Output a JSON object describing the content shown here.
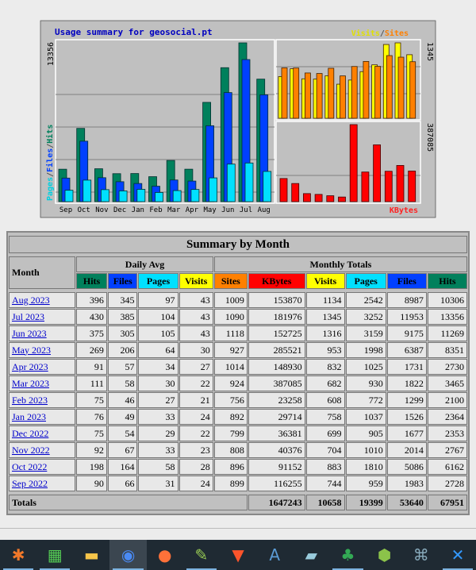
{
  "chart": {
    "title": "Usage summary for geosocial.pt",
    "legend_left": [
      "Pages",
      "/",
      "Files",
      "/",
      "Hits"
    ],
    "legend_visits": "Visits",
    "legend_sep": "/",
    "legend_sites": "Sites",
    "legend_kbytes": "KBytes",
    "max_hits": "13356",
    "max_visits": "1345",
    "max_kbytes": "387085",
    "colors": {
      "hits": "#00805c",
      "files": "#0040ff",
      "pages": "#00e0ff",
      "visits": "#ffff00",
      "sites": "#ff8000",
      "kbytes": "#ff0000"
    }
  },
  "chart_data": {
    "type": "bar",
    "title": "Usage summary for geosocial.pt",
    "categories": [
      "Sep",
      "Oct",
      "Nov",
      "Dec",
      "Jan",
      "Feb",
      "Mar",
      "Apr",
      "May",
      "Jun",
      "Jul",
      "Aug"
    ],
    "series": [
      {
        "name": "Hits",
        "values": [
          2728,
          6162,
          2767,
          2353,
          2364,
          2100,
          3465,
          2730,
          8351,
          11269,
          13356,
          10306
        ]
      },
      {
        "name": "Files",
        "values": [
          1983,
          5086,
          2014,
          1677,
          1526,
          1299,
          1822,
          1731,
          6387,
          9175,
          11953,
          8987
        ]
      },
      {
        "name": "Pages",
        "values": [
          959,
          1810,
          1010,
          905,
          1037,
          772,
          930,
          1025,
          1998,
          3159,
          3252,
          2542
        ]
      },
      {
        "name": "Visits",
        "values": [
          744,
          883,
          704,
          699,
          758,
          608,
          682,
          832,
          953,
          1316,
          1345,
          1134
        ]
      },
      {
        "name": "Sites",
        "values": [
          899,
          896,
          808,
          799,
          892,
          756,
          924,
          1014,
          927,
          1118,
          1090,
          1009
        ]
      },
      {
        "name": "KBytes",
        "values": [
          116255,
          91152,
          40376,
          36381,
          29714,
          23258,
          387085,
          148930,
          285521,
          152725,
          181976,
          153870
        ]
      }
    ],
    "ylim_hits": [
      0,
      13356
    ],
    "ylim_visits": [
      0,
      1345
    ],
    "ylim_kbytes": [
      0,
      387085
    ]
  },
  "table": {
    "title": "Summary by Month",
    "month_header": "Month",
    "daily_avg": "Daily Avg",
    "monthly_totals": "Monthly Totals",
    "columns": [
      "Hits",
      "Files",
      "Pages",
      "Visits",
      "Sites",
      "KBytes",
      "Visits",
      "Pages",
      "Files",
      "Hits"
    ],
    "rows": [
      [
        "Aug 2023",
        "396",
        "345",
        "97",
        "43",
        "1009",
        "153870",
        "1134",
        "2542",
        "8987",
        "10306"
      ],
      [
        "Jul 2023",
        "430",
        "385",
        "104",
        "43",
        "1090",
        "181976",
        "1345",
        "3252",
        "11953",
        "13356"
      ],
      [
        "Jun 2023",
        "375",
        "305",
        "105",
        "43",
        "1118",
        "152725",
        "1316",
        "3159",
        "9175",
        "11269"
      ],
      [
        "May 2023",
        "269",
        "206",
        "64",
        "30",
        "927",
        "285521",
        "953",
        "1998",
        "6387",
        "8351"
      ],
      [
        "Apr 2023",
        "91",
        "57",
        "34",
        "27",
        "1014",
        "148930",
        "832",
        "1025",
        "1731",
        "2730"
      ],
      [
        "Mar 2023",
        "111",
        "58",
        "30",
        "22",
        "924",
        "387085",
        "682",
        "930",
        "1822",
        "3465"
      ],
      [
        "Feb 2023",
        "75",
        "46",
        "27",
        "21",
        "756",
        "23258",
        "608",
        "772",
        "1299",
        "2100"
      ],
      [
        "Jan 2023",
        "76",
        "49",
        "33",
        "24",
        "892",
        "29714",
        "758",
        "1037",
        "1526",
        "2364"
      ],
      [
        "Dec 2022",
        "75",
        "54",
        "29",
        "22",
        "799",
        "36381",
        "699",
        "905",
        "1677",
        "2353"
      ],
      [
        "Nov 2022",
        "92",
        "67",
        "33",
        "23",
        "808",
        "40376",
        "704",
        "1010",
        "2014",
        "2767"
      ],
      [
        "Oct 2022",
        "198",
        "164",
        "58",
        "28",
        "896",
        "91152",
        "883",
        "1810",
        "5086",
        "6162"
      ],
      [
        "Sep 2022",
        "90",
        "66",
        "31",
        "24",
        "899",
        "116255",
        "744",
        "959",
        "1983",
        "2728"
      ]
    ],
    "totals_label": "Totals",
    "totals": [
      "1647243",
      "10658",
      "19399",
      "53640",
      "67951"
    ]
  },
  "taskbar": [
    {
      "name": "xampp",
      "glyph": "✱",
      "color": "#f0782a"
    },
    {
      "name": "color-app",
      "glyph": "▦",
      "color": "#5c5"
    },
    {
      "name": "file-explorer",
      "glyph": "▬",
      "color": "#f6c54a"
    },
    {
      "name": "chrome",
      "glyph": "◉",
      "color": "#4a8af4"
    },
    {
      "name": "firefox",
      "glyph": "●",
      "color": "#ff7139"
    },
    {
      "name": "notepad-plus",
      "glyph": "✎",
      "color": "#9c5"
    },
    {
      "name": "brave",
      "glyph": "▼",
      "color": "#fb542b"
    },
    {
      "name": "wordpad",
      "glyph": "A",
      "color": "#5b9bd5"
    },
    {
      "name": "notepad",
      "glyph": "▰",
      "color": "#9cd"
    },
    {
      "name": "dragon-app",
      "glyph": "♣",
      "color": "#3a5"
    },
    {
      "name": "cube-app",
      "glyph": "⬢",
      "color": "#8bc34a"
    },
    {
      "name": "mysql-workbench",
      "glyph": "⌘",
      "color": "#8ab"
    },
    {
      "name": "more",
      "glyph": "✕",
      "color": "#39f"
    }
  ]
}
